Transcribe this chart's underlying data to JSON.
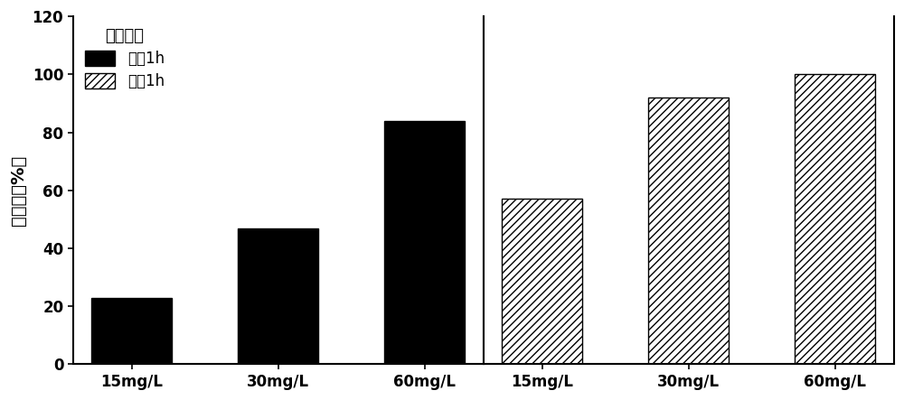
{
  "dark_values": [
    23,
    47,
    84
  ],
  "light_values": [
    57,
    92,
    100
  ],
  "categories": [
    "15mg/L",
    "30mg/L",
    "60mg/L"
  ],
  "ylabel": "抑菌率（%）",
  "ylim": [
    0,
    120
  ],
  "yticks": [
    0,
    20,
    40,
    60,
    80,
    100,
    120
  ],
  "legend_title": "葡萄球菌",
  "legend_dark": "黑晨1h",
  "legend_light": "光照1h",
  "bar_color_dark": "#000000",
  "bar_color_light": "#ffffff",
  "bar_edge_color": "#000000",
  "hatch_pattern": "////",
  "figsize": [
    10.0,
    4.43
  ],
  "dpi": 100
}
